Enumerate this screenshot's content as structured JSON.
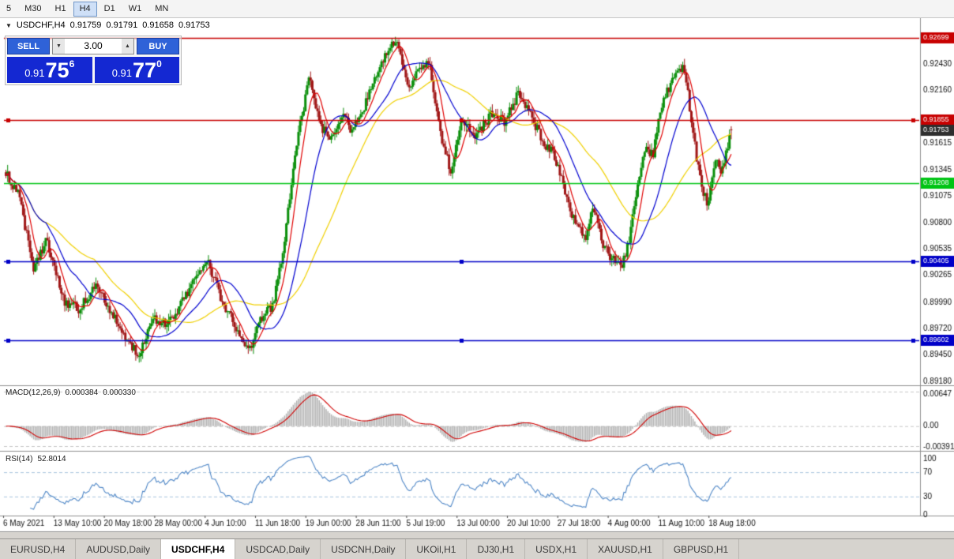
{
  "toolbar": {
    "timeframes": [
      "5",
      "M30",
      "H1",
      "H4",
      "D1",
      "W1",
      "MN"
    ],
    "active": "H4"
  },
  "chart_header": {
    "collapse_icon": "▼",
    "symbol": "USDCHF,H4",
    "open": "0.91759",
    "high": "0.91791",
    "low": "0.91658",
    "close": "0.91753"
  },
  "trade_panel": {
    "sell_label": "SELL",
    "buy_label": "BUY",
    "volume": "3.00",
    "volume_down_icon": "▼",
    "volume_up_icon": "▲",
    "sell_price": {
      "prefix": "0.91",
      "big": "75",
      "sup": "6"
    },
    "buy_price": {
      "prefix": "0.91",
      "big": "77",
      "sup": "0"
    }
  },
  "price_axis": {
    "ticks": [
      "0.92430",
      "0.92160",
      "0.91615",
      "0.91345",
      "0.91075",
      "0.90800",
      "0.90535",
      "0.90265",
      "0.89990",
      "0.89720",
      "0.89450",
      "0.89180"
    ],
    "current_price": {
      "label": "0.91753",
      "price": 0.91753,
      "bg": "#2e2e2e",
      "text": "#ffffff"
    }
  },
  "hlines": [
    {
      "price": 0.92699,
      "label": "0.92699",
      "color": "#c80000",
      "handles": false
    },
    {
      "price": 0.91855,
      "label": "0.91855",
      "color": "#c80000",
      "handles": true
    },
    {
      "price": 0.91208,
      "label": "0.91208",
      "color": "#00c414",
      "handles": false
    },
    {
      "price": 0.90405,
      "label": "0.90405",
      "color": "#0000c8",
      "handles": true
    },
    {
      "price": 0.89602,
      "label": "0.89602",
      "color": "#0000c8",
      "handles": true
    }
  ],
  "indicators": {
    "macd": {
      "name": "MACD(12,26,9)",
      "value_main": "0.000384",
      "value_signal": "0.000330",
      "axis_labels": [
        "0.00647",
        "0.00",
        "-0.00391"
      ],
      "axis_max": 0.00647,
      "axis_min": -0.00391,
      "fast": 12,
      "slow": 26,
      "signal": 9,
      "hist_color": "#b2b2b2",
      "signal_color": "#d00000"
    },
    "rsi": {
      "name": "RSI(14)",
      "value": "52.8014",
      "axis_labels": [
        "100",
        "70",
        "30",
        "0"
      ],
      "period": 14,
      "levels": [
        70,
        30
      ],
      "line_color": "#4f87c7",
      "level_color": "#a8c4de"
    }
  },
  "time_axis": {
    "labels": [
      "6 May 2021",
      "13 May 10:00",
      "20 May 18:00",
      "28 May 00:00",
      "4 Jun 10:00",
      "11 Jun 18:00",
      "19 Jun 00:00",
      "28 Jun 11:00",
      "5 Jul 19:00",
      "13 Jul 00:00",
      "20 Jul 10:00",
      "27 Jul 18:00",
      "4 Aug 00:00",
      "11 Aug 10:00",
      "18 Aug 18:00"
    ]
  },
  "tabs": {
    "items": [
      "EURUSD,H4",
      "AUDUSD,Daily",
      "USDCHF,H4",
      "USDCAD,Daily",
      "USDCNH,Daily",
      "UKOil,H1",
      "DJ30,H1",
      "USDX,H1",
      "XAUUSD,H1",
      "GBPUSD,H1"
    ],
    "active": "USDCHF,H4"
  },
  "chart_data": {
    "type": "candlestick",
    "symbol": "USDCHF",
    "timeframe": "H4",
    "price_range": [
      0.8918,
      0.9276
    ],
    "bars": 420,
    "data_width_fraction": 0.795,
    "up_color": "#0a8f0a",
    "down_color": "#a01616",
    "ma_periods": {
      "red": 8,
      "blue": 24,
      "yellow": 52
    },
    "ma_colors": {
      "red": "#e00000",
      "blue": "#0000d0",
      "yellow": "#f0d000"
    },
    "last_candle": {
      "open": 0.91759,
      "high": 0.91791,
      "low": 0.91658,
      "close": 0.91753
    },
    "price_path": [
      [
        0.0,
        0.9132
      ],
      [
        0.018,
        0.9108
      ],
      [
        0.038,
        0.9032
      ],
      [
        0.056,
        0.9062
      ],
      [
        0.08,
        0.9
      ],
      [
        0.102,
        0.8992
      ],
      [
        0.124,
        0.9018
      ],
      [
        0.148,
        0.8986
      ],
      [
        0.166,
        0.8958
      ],
      [
        0.184,
        0.8946
      ],
      [
        0.204,
        0.8982
      ],
      [
        0.224,
        0.8976
      ],
      [
        0.248,
        0.9006
      ],
      [
        0.278,
        0.9042
      ],
      [
        0.298,
        0.9
      ],
      [
        0.318,
        0.8972
      ],
      [
        0.334,
        0.8948
      ],
      [
        0.354,
        0.8986
      ],
      [
        0.368,
        0.8996
      ],
      [
        0.384,
        0.906
      ],
      [
        0.398,
        0.915
      ],
      [
        0.418,
        0.9228
      ],
      [
        0.434,
        0.918
      ],
      [
        0.448,
        0.9164
      ],
      [
        0.464,
        0.919
      ],
      [
        0.478,
        0.9174
      ],
      [
        0.498,
        0.9206
      ],
      [
        0.518,
        0.9246
      ],
      [
        0.538,
        0.927
      ],
      [
        0.554,
        0.9216
      ],
      [
        0.568,
        0.9234
      ],
      [
        0.584,
        0.9244
      ],
      [
        0.598,
        0.9176
      ],
      [
        0.614,
        0.913
      ],
      [
        0.628,
        0.9184
      ],
      [
        0.648,
        0.917
      ],
      [
        0.668,
        0.919
      ],
      [
        0.688,
        0.9184
      ],
      [
        0.706,
        0.9212
      ],
      [
        0.724,
        0.919
      ],
      [
        0.74,
        0.9164
      ],
      [
        0.756,
        0.915
      ],
      [
        0.778,
        0.9094
      ],
      [
        0.798,
        0.9062
      ],
      [
        0.81,
        0.91
      ],
      [
        0.822,
        0.9058
      ],
      [
        0.838,
        0.9042
      ],
      [
        0.85,
        0.9037
      ],
      [
        0.86,
        0.9066
      ],
      [
        0.872,
        0.9126
      ],
      [
        0.882,
        0.916
      ],
      [
        0.892,
        0.9148
      ],
      [
        0.902,
        0.9192
      ],
      [
        0.912,
        0.9216
      ],
      [
        0.926,
        0.9236
      ],
      [
        0.936,
        0.9238
      ],
      [
        0.946,
        0.918
      ],
      [
        0.956,
        0.9128
      ],
      [
        0.968,
        0.9096
      ],
      [
        0.978,
        0.9148
      ],
      [
        0.986,
        0.9128
      ],
      [
        1.0,
        0.9175
      ]
    ]
  }
}
